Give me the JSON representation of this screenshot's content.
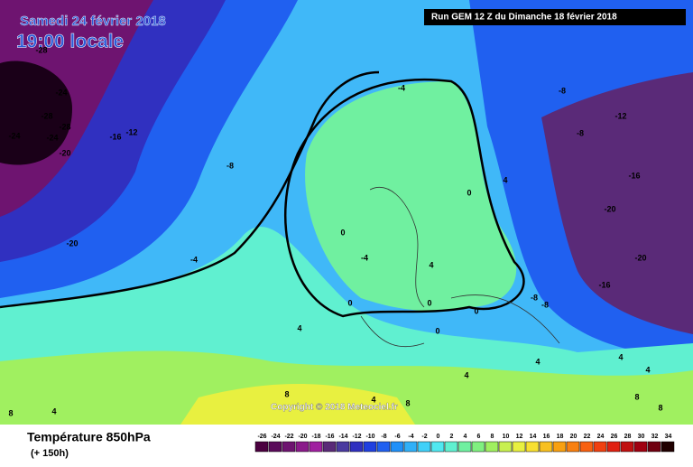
{
  "header": {
    "date": "Samedi 24 février 2018",
    "time": "19:00 locale",
    "run": "Run GEM 12 Z du Dimanche 18 février 2018"
  },
  "copyright": "Copyright © 2018 Meteociel.fr",
  "legend": {
    "title": "Température 850hPa",
    "lead": "(+ 150h)",
    "ticks": [
      -26,
      -24,
      -22,
      -20,
      -18,
      -16,
      -14,
      -12,
      -10,
      -8,
      -6,
      -4,
      -2,
      0,
      2,
      4,
      6,
      8,
      10,
      12,
      14,
      16,
      18,
      20,
      22,
      24,
      26,
      28,
      30,
      32,
      34
    ],
    "colors": [
      "#4b0040",
      "#5a0a5a",
      "#6e1470",
      "#8a1a8a",
      "#a020a0",
      "#5a2a78",
      "#4a3aa0",
      "#3030c0",
      "#2040e0",
      "#2060f0",
      "#2090f8",
      "#30b0f8",
      "#40d0f8",
      "#50e8f0",
      "#60f0d0",
      "#70f0a0",
      "#80f080",
      "#a0f060",
      "#c8f050",
      "#e8f040",
      "#f8e030",
      "#f8c020",
      "#f8a010",
      "#f88010",
      "#f86010",
      "#f04010",
      "#e02010",
      "#c01010",
      "#a00010",
      "#700010",
      "#200000"
    ]
  },
  "contour_labels": [
    -28,
    -24,
    -28,
    -28,
    -24,
    -24,
    -20,
    -16,
    -12,
    -8,
    -20,
    -4,
    -4,
    -8,
    -12,
    -8,
    -16,
    -20,
    -20,
    -16,
    0,
    4,
    0,
    -4,
    4,
    0,
    0,
    0,
    0,
    -8,
    -8,
    4,
    4,
    4,
    4,
    4,
    8,
    8,
    8,
    8,
    4,
    8,
    4
  ]
}
